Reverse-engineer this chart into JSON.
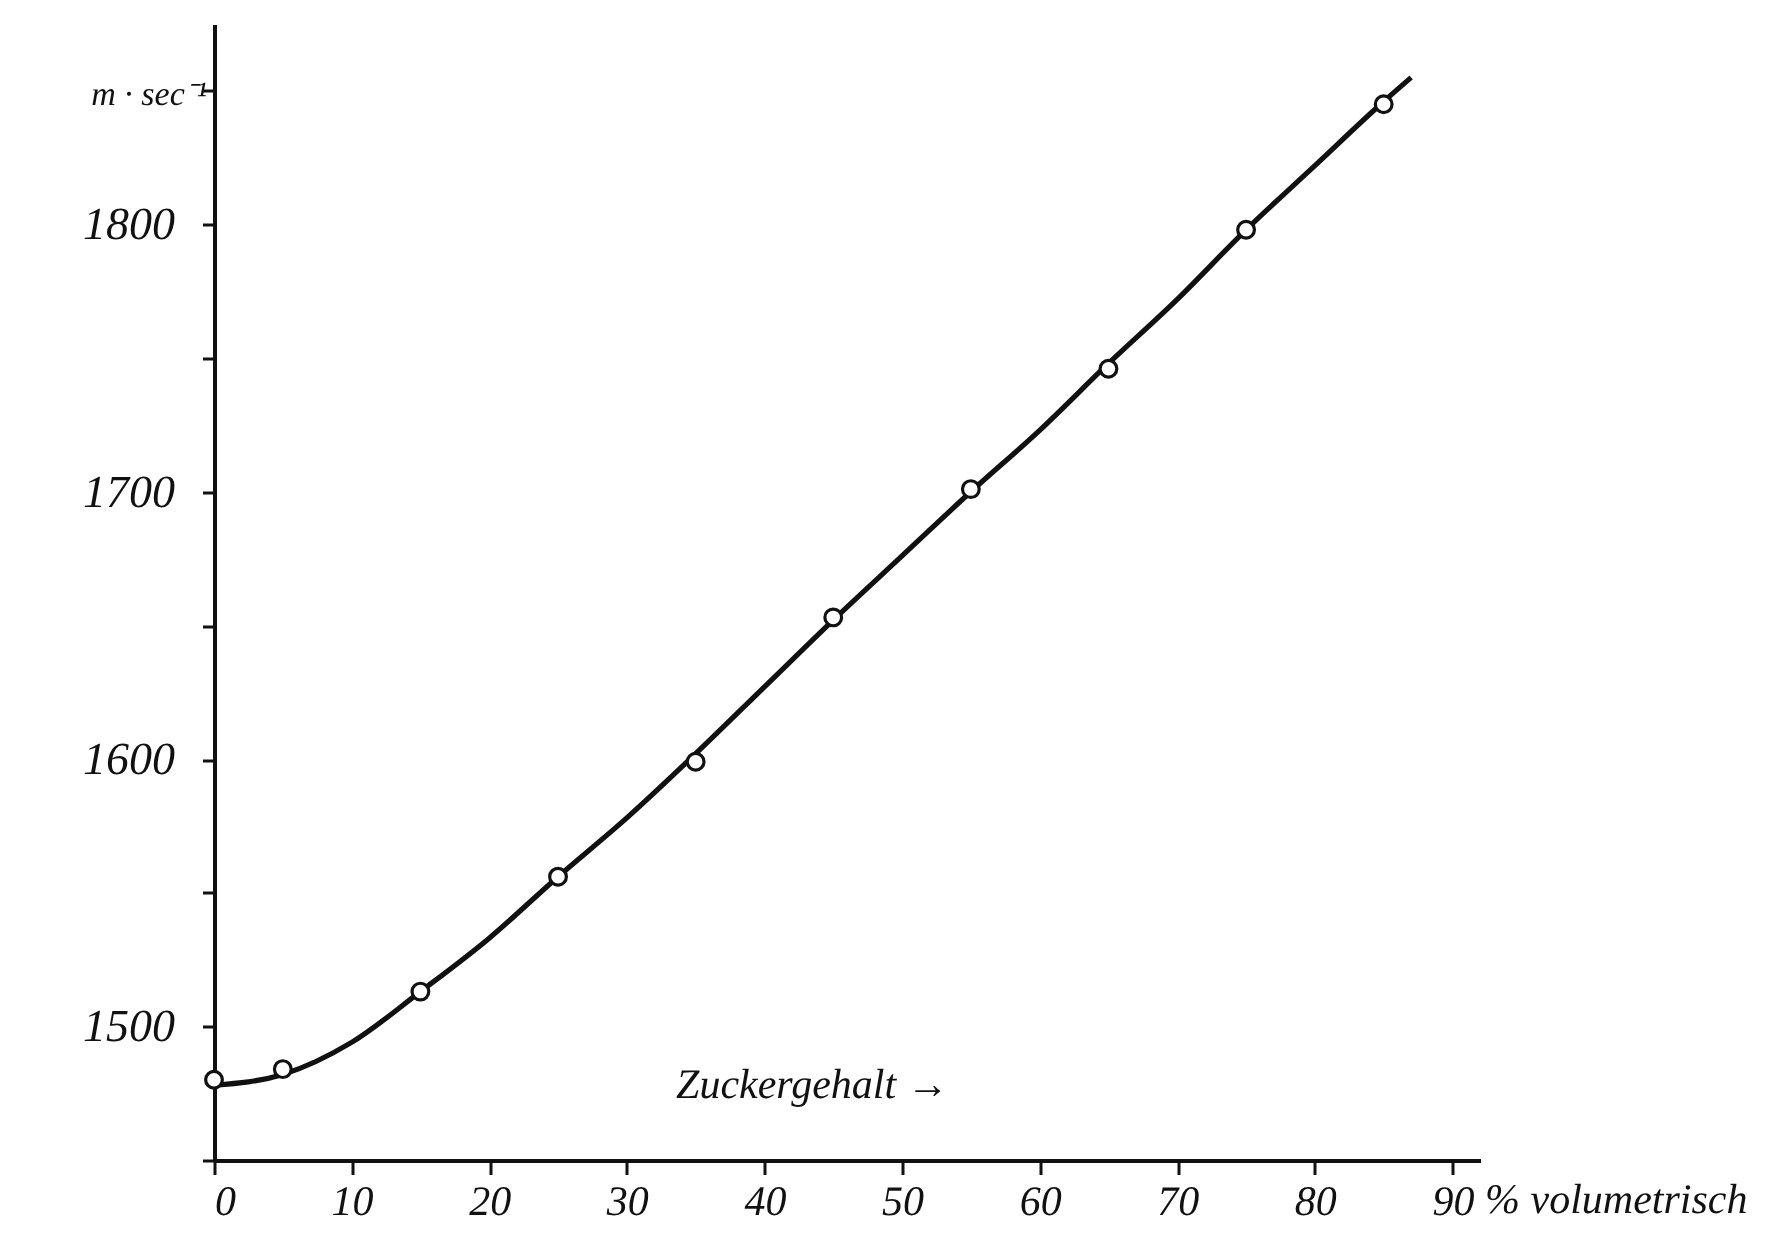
{
  "chart_data": {
    "type": "scatter",
    "xlabel": "% volumetrisch",
    "ylabel": "m · sec⁻¹",
    "annotations": [
      "Zuckergehalt →"
    ],
    "xlim": [
      0,
      92
    ],
    "xticks": [
      0,
      10,
      20,
      30,
      40,
      50,
      60,
      70,
      80,
      90
    ],
    "ylim": [
      1450,
      1875
    ],
    "yticks": [
      {
        "value": 1450,
        "label": null
      },
      1500,
      {
        "value": 1550,
        "label": null
      },
      1600,
      {
        "value": 1650,
        "label": null
      },
      1700,
      {
        "value": 1750,
        "label": null
      },
      1800,
      {
        "value": 1850,
        "label": null
      }
    ],
    "grid": false,
    "marker": "circle",
    "series": [
      {
        "type": "line",
        "color": "#111111",
        "marker": "none",
        "line_style": "solid",
        "x": [
          0,
          5,
          10,
          15,
          20,
          25,
          30,
          35,
          40,
          45,
          50,
          55,
          60,
          65,
          70,
          75,
          80,
          85,
          87
        ],
        "values": [
          1478,
          1482,
          1494,
          1513,
          1533,
          1556,
          1578,
          1602,
          1627,
          1652,
          1676,
          1700,
          1723,
          1748,
          1772,
          1798,
          1822,
          1846,
          1855
        ]
      },
      {
        "color": "#111111",
        "x": [
          0,
          5,
          15,
          25,
          35,
          45,
          55,
          65,
          75,
          85
        ],
        "values": [
          1480,
          1484,
          1513,
          1556,
          1599,
          1653,
          1701,
          1746,
          1798,
          1845
        ]
      }
    ]
  }
}
